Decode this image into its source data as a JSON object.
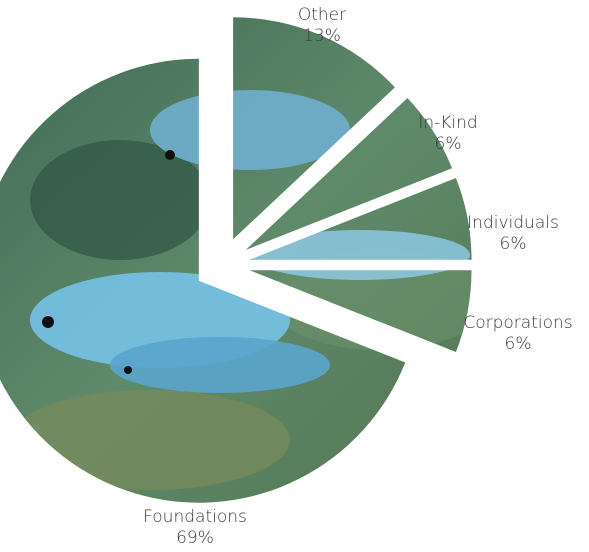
{
  "chart_data": {
    "type": "pie",
    "categories": [
      "Other",
      "In-Kind",
      "Individuals",
      "Corporations",
      "Foundations"
    ],
    "values": [
      13,
      6,
      6,
      6,
      69
    ],
    "value_labels": [
      "13%",
      "6%",
      "6%",
      "6%",
      "69%"
    ]
  }
}
